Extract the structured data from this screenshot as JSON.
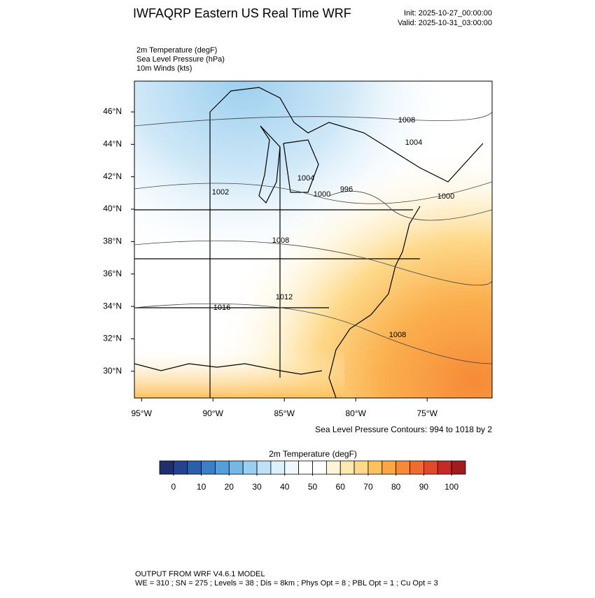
{
  "header": {
    "title": "IWFAQRP Eastern US Real Time WRF",
    "init": "Init: 2025-10-27_00:00:00",
    "valid": "Valid: 2025-10-31_03:00:00",
    "fields": [
      "2m Temperature   (degF)",
      "Sea Level Pressure   (hPa)",
      "10m Winds   (kts)"
    ]
  },
  "map": {
    "xlim": [
      -95.5,
      -70.45
    ],
    "ylim": [
      28.35,
      47.9
    ],
    "xticks": [
      {
        "value": -95,
        "label": "95°W"
      },
      {
        "value": -90,
        "label": "90°W"
      },
      {
        "value": -85,
        "label": "85°W"
      },
      {
        "value": -80,
        "label": "80°W"
      },
      {
        "value": -75,
        "label": "75°W"
      }
    ],
    "yticks": [
      {
        "value": 30,
        "label": "30°N"
      },
      {
        "value": 32,
        "label": "32°N"
      },
      {
        "value": 34,
        "label": "34°N"
      },
      {
        "value": 36,
        "label": "36°N"
      },
      {
        "value": 38,
        "label": "38°N"
      },
      {
        "value": 40,
        "label": "40°N"
      },
      {
        "value": 42,
        "label": "42°N"
      },
      {
        "value": 44,
        "label": "44°N"
      },
      {
        "value": 46,
        "label": "46°N"
      }
    ],
    "contour_labels": [
      "1008",
      "1004",
      "1004",
      "1000",
      "996",
      "1002",
      "1000",
      "1008",
      "1012",
      "1016",
      "1008"
    ],
    "caption": "Sea Level Pressure Contours: 994 to 1018 by 2"
  },
  "colorbar": {
    "title": "2m Temperature   (degF)",
    "range": [
      -5,
      105
    ],
    "colors": [
      "#1f2f6b",
      "#23438f",
      "#2c5fab",
      "#3d7fc4",
      "#559fd8",
      "#77b7e5",
      "#9ccfef",
      "#bfe1f5",
      "#dcf0fa",
      "#f0f8fd",
      "#ffffff",
      "#ffffff",
      "#fff6d9",
      "#feeaae",
      "#fdd98a",
      "#fdc15e",
      "#fba744",
      "#f68a37",
      "#ef6b2e",
      "#e04a2a",
      "#c52a27",
      "#a01c1f"
    ],
    "ticks": [
      0,
      10,
      20,
      30,
      40,
      50,
      60,
      70,
      80,
      90,
      100
    ]
  },
  "footer": {
    "line1": "OUTPUT FROM WRF V4.6.1 MODEL",
    "line2": "WE = 310 ; SN = 275 ; Levels = 38 ; Dis = 8km ; Phys Opt = 8 ; PBL Opt = 1 ; Cu Opt = 3"
  }
}
